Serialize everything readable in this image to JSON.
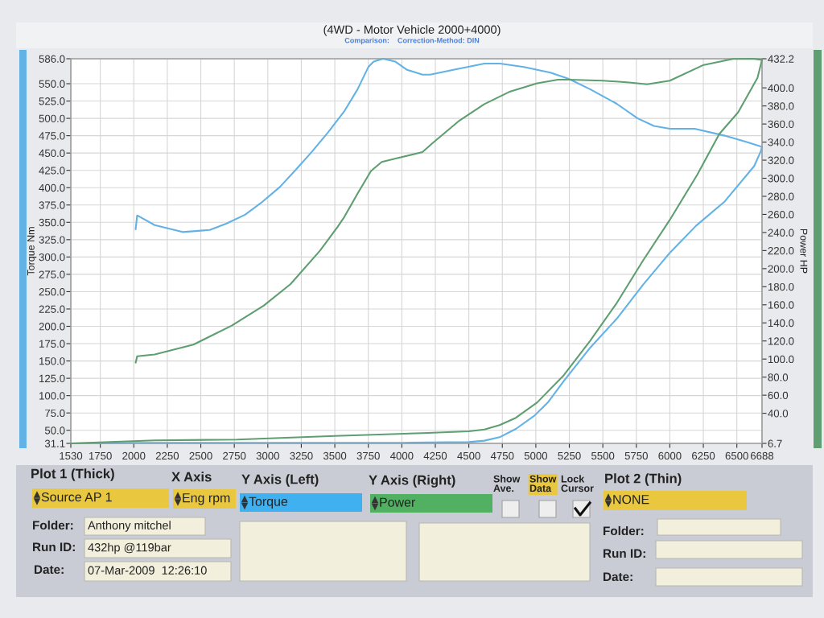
{
  "chart_data": {
    "type": "line",
    "title": "(4WD - Motor Vehicle 2000+4000)",
    "subtitle": "Comparison:    Correction-Method: DIN",
    "ylabel": "Torque Nm",
    "y2label": "Power HP",
    "xlim": [
      1530,
      6688
    ],
    "xticks": [
      1530,
      1750,
      2000,
      2250,
      2500,
      2750,
      3000,
      3250,
      3500,
      3750,
      4000,
      4250,
      4500,
      4750,
      5000,
      5250,
      5500,
      5750,
      6000,
      6250,
      6500,
      6688
    ],
    "ylim": [
      31.1,
      586.0
    ],
    "yticks": [
      31.1,
      {
        "value": 50,
        "label": "50.0"
      },
      {
        "value": 75,
        "label": "75.0"
      },
      {
        "value": 100,
        "label": "100.0"
      },
      {
        "value": 125,
        "label": "125.0"
      },
      {
        "value": 150,
        "label": "150.0"
      },
      {
        "value": 175,
        "label": "175.0"
      },
      {
        "value": 200,
        "label": "200.0"
      },
      {
        "value": 225,
        "label": "225.0"
      },
      {
        "value": 250,
        "label": "250.0"
      },
      {
        "value": 275,
        "label": "275.0"
      },
      {
        "value": 300,
        "label": "300.0"
      },
      {
        "value": 325,
        "label": "325.0"
      },
      {
        "value": 350,
        "label": "350.0"
      },
      {
        "value": 375,
        "label": "375.0"
      },
      {
        "value": 400,
        "label": "400.0"
      },
      {
        "value": 425,
        "label": "425.0"
      },
      {
        "value": 450,
        "label": "450.0"
      },
      {
        "value": 475,
        "label": "475.0"
      },
      {
        "value": 500,
        "label": "500.0"
      },
      {
        "value": 525,
        "label": "525.0"
      },
      {
        "value": 550,
        "label": "550.0"
      },
      {
        "value": 586,
        "label": "586.0"
      }
    ],
    "y2lim": [
      6.7,
      432.2
    ],
    "y2ticks": [
      6.7,
      {
        "value": 40,
        "label": "40.0"
      },
      {
        "value": 60,
        "label": "60.0"
      },
      {
        "value": 80,
        "label": "80.0"
      },
      {
        "value": 100,
        "label": "100.0"
      },
      {
        "value": 120,
        "label": "120.0"
      },
      {
        "value": 140,
        "label": "140.0"
      },
      {
        "value": 160,
        "label": "160.0"
      },
      {
        "value": 180,
        "label": "180.0"
      },
      {
        "value": 200,
        "label": "200.0"
      },
      {
        "value": 220,
        "label": "220.0"
      },
      {
        "value": 240,
        "label": "240.0"
      },
      {
        "value": 260,
        "label": "260.0"
      },
      {
        "value": 280,
        "label": "280.0"
      },
      {
        "value": 300,
        "label": "300.0"
      },
      {
        "value": 320,
        "label": "320.0"
      },
      {
        "value": 340,
        "label": "340.0"
      },
      {
        "value": 360,
        "label": "360.0"
      },
      {
        "value": 380,
        "label": "380.0"
      },
      {
        "value": 400,
        "label": "400.0"
      },
      432.2
    ],
    "grid": true,
    "line_style": "solid",
    "series": [
      {
        "color": "#62b2e6",
        "x": [
          2014,
          2025,
          2156,
          2364,
          2567,
          2689,
          2830,
          2949,
          3090,
          3210,
          3330,
          3450,
          3570,
          3670,
          3750,
          3790,
          3860,
          3950,
          4039,
          4154,
          4211,
          4385,
          4616,
          4733,
          4911,
          5109,
          5246,
          5405,
          5604,
          5760,
          5881,
          6000,
          6185,
          6409,
          6569,
          6688,
          6678,
          6629,
          6409,
          6195,
          6000,
          5800,
          5604,
          5405,
          5208,
          5089,
          4989,
          4851,
          4730,
          4616,
          4500,
          4000,
          3000,
          2000,
          1530
        ],
        "values": [
          340,
          360,
          346,
          336,
          339,
          348,
          361,
          378,
          401,
          426,
          452,
          480,
          510,
          542,
          574,
          582,
          586,
          582,
          570,
          563,
          563,
          570,
          579,
          579,
          574,
          566,
          557,
          542,
          521,
          500,
          489,
          485,
          485,
          475,
          466,
          459,
          452,
          431,
          380,
          345,
          306,
          260,
          211,
          169,
          121,
          90,
          71,
          52,
          40,
          35,
          33,
          32,
          32,
          32,
          31.1
        ]
      },
      {
        "color": "#5e9e70",
        "axis": "y2",
        "x": [
          2014,
          2025,
          2156,
          2445,
          2731,
          2969,
          3170,
          3390,
          3520,
          3570,
          3670,
          3770,
          3850,
          3960,
          4154,
          4230,
          4423,
          4616,
          4809,
          5010,
          5165,
          5246,
          5500,
          5696,
          5830,
          6000,
          6246,
          6470,
          6620,
          6688,
          6654,
          6510,
          6369,
          6205,
          6000,
          5800,
          5604,
          5405,
          5208,
          5010,
          4851,
          4730,
          4616,
          4500,
          4154,
          3500,
          2770,
          2156,
          1530
        ],
        "values": [
          96,
          103,
          105,
          116,
          137,
          159,
          183,
          220,
          246,
          257,
          283,
          308,
          318,
          322,
          329,
          339,
          363,
          382,
          396,
          405,
          409,
          409,
          408,
          406,
          404,
          408,
          425,
          432,
          432.2,
          431,
          411,
          373,
          349,
          304,
          254,
          209,
          162,
          120,
          82,
          52,
          35,
          27,
          22,
          20,
          18,
          15,
          11,
          10,
          6.7
        ]
      }
    ],
    "annotations": [
      "Plot 1 (Thick)",
      "X Axis",
      "Y Axis (Left)",
      "Y Axis (Right)",
      "Show\nAve.",
      "Show\nData",
      "Lock\nCursor",
      "Plot 2 (Thin)",
      "Source AP 1",
      "Eng rpm",
      "Torque",
      "Power",
      "NONE",
      "Folder:",
      "Anthony mitchel",
      "Run ID:",
      "432hp @119bar",
      "Date:",
      "07-Mar-2009  12:26:10",
      "Folder:",
      "Run ID:",
      "Date:"
    ]
  }
}
